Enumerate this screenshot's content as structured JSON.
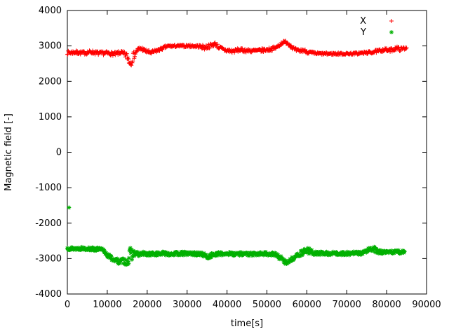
{
  "chart_data": {
    "type": "scatter",
    "title": "",
    "xlabel": "time[s]",
    "ylabel": "Magnetic field [-]",
    "xlim": [
      0,
      90000
    ],
    "ylim": [
      -4000,
      4000
    ],
    "xticks": [
      0,
      10000,
      20000,
      30000,
      40000,
      50000,
      60000,
      70000,
      80000,
      90000
    ],
    "yticks": [
      -4000,
      -3000,
      -2000,
      -1000,
      0,
      1000,
      2000,
      3000,
      4000
    ],
    "grid": false,
    "legend_position": "top-right",
    "point_step": 120,
    "series": [
      {
        "name": "X",
        "color": "#ff0000",
        "marker": "plus",
        "seed": 7,
        "anchors": [
          [
            0,
            2810,
            50
          ],
          [
            2000,
            2820,
            50
          ],
          [
            4000,
            2800,
            50
          ],
          [
            6000,
            2830,
            50
          ],
          [
            8000,
            2790,
            55
          ],
          [
            10000,
            2800,
            50
          ],
          [
            12000,
            2770,
            55
          ],
          [
            13500,
            2820,
            50
          ],
          [
            15000,
            2700,
            110
          ],
          [
            15800,
            2520,
            130
          ],
          [
            16500,
            2700,
            120
          ],
          [
            17500,
            2880,
            70
          ],
          [
            18500,
            2930,
            60
          ],
          [
            19500,
            2860,
            50
          ],
          [
            21000,
            2810,
            50
          ],
          [
            23000,
            2890,
            45
          ],
          [
            25000,
            2990,
            35
          ],
          [
            28000,
            3000,
            30
          ],
          [
            31000,
            3000,
            35
          ],
          [
            33000,
            2990,
            40
          ],
          [
            34500,
            2960,
            70
          ],
          [
            36000,
            3010,
            60
          ],
          [
            37000,
            3060,
            55
          ],
          [
            38000,
            2960,
            60
          ],
          [
            39000,
            2900,
            55
          ],
          [
            40000,
            2870,
            60
          ],
          [
            41500,
            2850,
            55
          ],
          [
            43000,
            2890,
            50
          ],
          [
            45000,
            2870,
            50
          ],
          [
            47000,
            2860,
            50
          ],
          [
            49000,
            2880,
            50
          ],
          [
            51000,
            2910,
            50
          ],
          [
            52500,
            2960,
            50
          ],
          [
            53800,
            3090,
            45
          ],
          [
            54800,
            3110,
            50
          ],
          [
            55800,
            3030,
            55
          ],
          [
            57000,
            2890,
            55
          ],
          [
            58000,
            2850,
            55
          ],
          [
            59000,
            2880,
            50
          ],
          [
            60500,
            2820,
            45
          ],
          [
            62000,
            2790,
            35
          ],
          [
            64000,
            2780,
            30
          ],
          [
            66000,
            2780,
            30
          ],
          [
            68000,
            2780,
            30
          ],
          [
            70000,
            2780,
            30
          ],
          [
            72000,
            2785,
            30
          ],
          [
            74000,
            2800,
            35
          ],
          [
            76000,
            2820,
            40
          ],
          [
            78000,
            2855,
            45
          ],
          [
            79500,
            2900,
            45
          ],
          [
            80500,
            2870,
            50
          ],
          [
            81500,
            2900,
            50
          ],
          [
            82500,
            2940,
            55
          ],
          [
            83500,
            2900,
            55
          ],
          [
            84500,
            2940,
            50
          ],
          [
            85000,
            2950,
            40
          ]
        ],
        "outliers": []
      },
      {
        "name": "Y",
        "color": "#00b000",
        "marker": "asterisk",
        "seed": 13,
        "anchors": [
          [
            0,
            -2710,
            45
          ],
          [
            2000,
            -2720,
            45
          ],
          [
            4000,
            -2710,
            45
          ],
          [
            6000,
            -2730,
            45
          ],
          [
            8000,
            -2740,
            50
          ],
          [
            9000,
            -2770,
            55
          ],
          [
            10000,
            -2890,
            60
          ],
          [
            11000,
            -2990,
            60
          ],
          [
            12000,
            -3040,
            65
          ],
          [
            13000,
            -3090,
            70
          ],
          [
            14000,
            -3060,
            80
          ],
          [
            15000,
            -3110,
            90
          ],
          [
            15800,
            -2900,
            230
          ],
          [
            16300,
            -2850,
            150
          ],
          [
            17000,
            -2850,
            70
          ],
          [
            18000,
            -2890,
            60
          ],
          [
            19000,
            -2860,
            55
          ],
          [
            20000,
            -2870,
            50
          ],
          [
            22000,
            -2870,
            50
          ],
          [
            24000,
            -2855,
            50
          ],
          [
            26000,
            -2865,
            50
          ],
          [
            28000,
            -2860,
            50
          ],
          [
            30000,
            -2855,
            50
          ],
          [
            32000,
            -2865,
            50
          ],
          [
            34000,
            -2885,
            55
          ],
          [
            35000,
            -2950,
            75
          ],
          [
            36000,
            -2905,
            60
          ],
          [
            38000,
            -2870,
            50
          ],
          [
            40000,
            -2855,
            50
          ],
          [
            42000,
            -2870,
            50
          ],
          [
            44000,
            -2860,
            50
          ],
          [
            46000,
            -2880,
            50
          ],
          [
            48000,
            -2870,
            50
          ],
          [
            50000,
            -2860,
            50
          ],
          [
            52000,
            -2880,
            50
          ],
          [
            53500,
            -2990,
            60
          ],
          [
            54800,
            -3110,
            65
          ],
          [
            56000,
            -3040,
            60
          ],
          [
            57000,
            -2950,
            55
          ],
          [
            58000,
            -2890,
            55
          ],
          [
            59000,
            -2820,
            85
          ],
          [
            60000,
            -2760,
            95
          ],
          [
            61000,
            -2810,
            70
          ],
          [
            62000,
            -2850,
            55
          ],
          [
            64000,
            -2850,
            50
          ],
          [
            66000,
            -2860,
            50
          ],
          [
            68000,
            -2850,
            50
          ],
          [
            70000,
            -2860,
            50
          ],
          [
            72000,
            -2850,
            50
          ],
          [
            74000,
            -2840,
            50
          ],
          [
            75500,
            -2760,
            80
          ],
          [
            76500,
            -2720,
            90
          ],
          [
            77500,
            -2790,
            60
          ],
          [
            78500,
            -2820,
            50
          ],
          [
            80000,
            -2830,
            50
          ],
          [
            82000,
            -2805,
            55
          ],
          [
            83000,
            -2820,
            55
          ],
          [
            84500,
            -2800,
            50
          ]
        ],
        "outliers": [
          [
            400,
            -1560
          ]
        ]
      }
    ]
  }
}
